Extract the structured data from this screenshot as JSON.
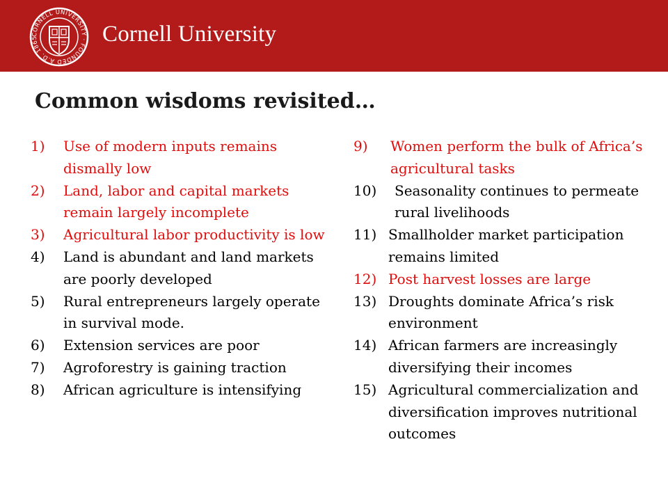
{
  "header": {
    "brand": "Cornell University",
    "seal_text": "CORNELL UNIVERSITY · FOUNDED A.D. 1865"
  },
  "title": "Common wisdoms revisited…",
  "colors": {
    "banner": "#b31b1b",
    "highlight": "#e00d0d",
    "text": "#000000"
  },
  "left_items": [
    {
      "num": "1)",
      "text": "Use of modern inputs remains dismally low",
      "highlighted": true
    },
    {
      "num": "2)",
      "text": "Land, labor and capital markets remain largely incomplete",
      "highlighted": true
    },
    {
      "num": "3)",
      "text": "Agricultural labor productivity is low",
      "highlighted": true
    },
    {
      "num": "4)",
      "text": "Land is abundant and land markets are poorly developed",
      "highlighted": false
    },
    {
      "num": "5)",
      "text": "Rural entrepreneurs largely operate in survival mode.",
      "highlighted": false
    },
    {
      "num": "6)",
      "text": "Extension services are poor",
      "highlighted": false
    },
    {
      "num": "7)",
      "text": "Agroforestry is gaining traction",
      "highlighted": false
    },
    {
      "num": "8)",
      "text": "African agriculture is intensifying",
      "highlighted": false
    }
  ],
  "right_items": [
    {
      "num": "9)",
      "text": "Women perform the bulk of Africa’s agricultural tasks",
      "highlighted": true
    },
    {
      "num": "10)",
      "text": "Seasonality continues to permeate rural livelihoods",
      "highlighted": false
    },
    {
      "num": "11)",
      "text": "Smallholder market participation remains limited",
      "highlighted": false
    },
    {
      "num": "12)",
      "text": "Post harvest losses are large",
      "highlighted": true
    },
    {
      "num": "13)",
      "text": "Droughts dominate Africa’s risk environment",
      "highlighted": false
    },
    {
      "num": "14)",
      "text": "African farmers are increasingly diversifying their incomes",
      "highlighted": false
    },
    {
      "num": "15)",
      "text": "Agricultural commercialization and diversification improves nutritional outcomes",
      "highlighted": false
    }
  ]
}
